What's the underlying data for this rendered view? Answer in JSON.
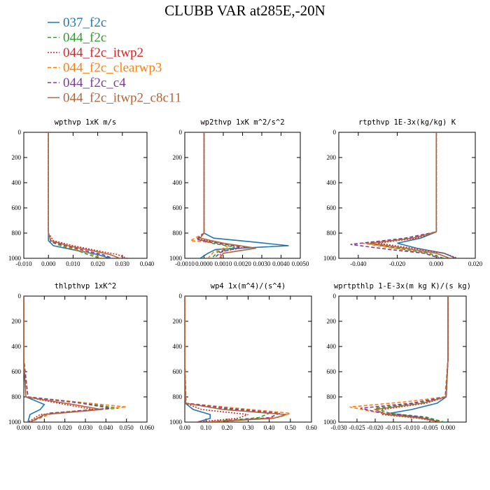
{
  "figure": {
    "title": "CLUBB VAR at285E,-20N"
  },
  "legend": [
    {
      "name": "037_f2c",
      "color": "#1f77b4",
      "dash": "solid"
    },
    {
      "name": "044_f2c",
      "color": "#2ca02c",
      "dash": "dashed"
    },
    {
      "name": "044_f2c_itwp2",
      "color": "#d62728",
      "dash": "dotted"
    },
    {
      "name": "044_f2c_clearwp3",
      "color": "#ff7f0e",
      "dash": "dashed"
    },
    {
      "name": "044_f2c_c4",
      "color": "#7d3c98",
      "dash": "dashed"
    },
    {
      "name": "044_f2c_itwp2_c8c11",
      "color": "#b5653a",
      "dash": "solid"
    }
  ],
  "chart_data": [
    {
      "type": "line",
      "title": "wpthvp  1xK m/s",
      "xlim": [
        -0.01,
        0.04
      ],
      "ylim": [
        1000,
        0
      ],
      "xticks": [
        "-0.010",
        "0.000",
        "0.010",
        "0.020",
        "0.030",
        "0.040"
      ],
      "xtick_values": [
        -0.01,
        0.0,
        0.01,
        0.02,
        0.03,
        0.04
      ],
      "yticks": [
        "0",
        "200",
        "400",
        "600",
        "800",
        "1000"
      ],
      "ytick_values": [
        0,
        200,
        400,
        600,
        800,
        1000
      ],
      "series": [
        {
          "name": "037_f2c",
          "x": [
            0,
            0,
            0,
            0,
            0.002,
            0.012,
            0.02,
            0.025
          ],
          "y": [
            0,
            500,
            800,
            860,
            900,
            940,
            970,
            1000
          ]
        },
        {
          "name": "044_f2c",
          "x": [
            0,
            0,
            0,
            0.001,
            0.005,
            0.012,
            0.016,
            0.021
          ],
          "y": [
            0,
            500,
            800,
            870,
            900,
            940,
            970,
            1000
          ]
        },
        {
          "name": "044_f2c_itwp2",
          "x": [
            0,
            0,
            0,
            0.002,
            0.01,
            0.02,
            0.028,
            0.032
          ],
          "y": [
            0,
            500,
            800,
            860,
            900,
            940,
            970,
            1000
          ]
        },
        {
          "name": "044_f2c_clearwp3",
          "x": [
            0,
            0,
            0,
            0.001,
            0.006,
            0.013,
            0.018,
            0.022
          ],
          "y": [
            0,
            500,
            800,
            870,
            900,
            940,
            970,
            1000
          ]
        },
        {
          "name": "044_f2c_c4",
          "x": [
            0,
            0,
            0,
            0.001,
            0.007,
            0.015,
            0.022,
            0.026
          ],
          "y": [
            0,
            500,
            800,
            870,
            900,
            940,
            970,
            1000
          ]
        },
        {
          "name": "044_f2c_itwp2_c8c11",
          "x": [
            0,
            0,
            0,
            0.001,
            0.008,
            0.018,
            0.025,
            0.029
          ],
          "y": [
            0,
            500,
            800,
            860,
            900,
            940,
            970,
            1000
          ]
        }
      ]
    },
    {
      "type": "line",
      "title": "wp2thvp  1xK m^2/s^2",
      "xlim": [
        -0.001,
        0.005
      ],
      "ylim": [
        1000,
        0
      ],
      "xticks": [
        "-0.0010",
        "0.0000",
        "0.0010",
        "0.0020",
        "0.0030",
        "0.0040",
        "0.0050"
      ],
      "xtick_values": [
        -0.001,
        0.0,
        0.001,
        0.002,
        0.003,
        0.004,
        0.005
      ],
      "yticks": [
        "0",
        "200",
        "400",
        "600",
        "800",
        "1000"
      ],
      "ytick_values": [
        0,
        200,
        400,
        600,
        800,
        1000
      ],
      "series": [
        {
          "name": "037_f2c",
          "x": [
            0,
            0,
            0,
            0.0005,
            0.0025,
            0.0044,
            0.0006,
            0.0002,
            -0.0002
          ],
          "y": [
            0,
            500,
            800,
            840,
            870,
            900,
            930,
            960,
            1000
          ]
        },
        {
          "name": "044_f2c",
          "x": [
            0,
            0,
            0,
            -0.0003,
            0.0004,
            0.0016,
            0.0007,
            0.0004
          ],
          "y": [
            0,
            500,
            800,
            850,
            880,
            910,
            950,
            1000
          ]
        },
        {
          "name": "044_f2c_itwp2",
          "x": [
            0,
            0,
            0,
            -0.0003,
            0.001,
            0.0022,
            0.0008,
            0.0009
          ],
          "y": [
            0,
            500,
            800,
            850,
            880,
            910,
            950,
            1000
          ]
        },
        {
          "name": "044_f2c_clearwp3",
          "x": [
            0,
            0,
            0,
            -0.0007,
            0.0008,
            0.0012,
            0.0005,
            0.0002
          ],
          "y": [
            0,
            500,
            800,
            860,
            880,
            910,
            950,
            1000
          ]
        },
        {
          "name": "044_f2c_c4",
          "x": [
            0,
            0,
            0,
            -0.0004,
            0.0007,
            0.0019,
            0.0009,
            0.0005
          ],
          "y": [
            0,
            500,
            800,
            850,
            880,
            910,
            950,
            1000
          ]
        },
        {
          "name": "044_f2c_itwp2_c8c11",
          "x": [
            0,
            0,
            0,
            -0.0002,
            0.001,
            0.0027,
            0.001,
            0.0008
          ],
          "y": [
            0,
            500,
            800,
            840,
            880,
            920,
            960,
            1000
          ]
        }
      ]
    },
    {
      "type": "line",
      "title": "rtpthvp  1E-3x(kg/kg) K",
      "xlim": [
        -0.05,
        0.02
      ],
      "ylim": [
        1000,
        0
      ],
      "xticks": [
        "-0.040",
        "-0.020",
        "0.000",
        "0.020"
      ],
      "xtick_values": [
        -0.04,
        -0.02,
        0.0,
        0.02
      ],
      "yticks": [
        "0",
        "200",
        "400",
        "600",
        "800",
        "1000"
      ],
      "ytick_values": [
        0,
        200,
        400,
        600,
        800,
        1000
      ],
      "series": [
        {
          "name": "037_f2c",
          "x": [
            0,
            0,
            0,
            -0.008,
            -0.02,
            -0.01,
            0.004,
            0.01
          ],
          "y": [
            0,
            500,
            790,
            840,
            880,
            920,
            960,
            1000
          ]
        },
        {
          "name": "044_f2c",
          "x": [
            0,
            0,
            0,
            -0.012,
            -0.036,
            -0.02,
            -0.004,
            0.004
          ],
          "y": [
            0,
            500,
            790,
            840,
            880,
            920,
            960,
            1000
          ]
        },
        {
          "name": "044_f2c_itwp2",
          "x": [
            0,
            0,
            0,
            -0.01,
            -0.03,
            -0.012,
            0.004,
            0.011
          ],
          "y": [
            0,
            500,
            790,
            840,
            880,
            920,
            960,
            1000
          ]
        },
        {
          "name": "044_f2c_clearwp3",
          "x": [
            0,
            0,
            0,
            -0.014,
            -0.038,
            -0.022,
            -0.006,
            0.002
          ],
          "y": [
            0,
            500,
            790,
            840,
            880,
            920,
            960,
            1000
          ]
        },
        {
          "name": "044_f2c_c4",
          "x": [
            0,
            0,
            0,
            -0.016,
            -0.044,
            -0.024,
            -0.006,
            0.002
          ],
          "y": [
            0,
            500,
            790,
            840,
            890,
            930,
            960,
            1000
          ]
        },
        {
          "name": "044_f2c_itwp2_c8c11",
          "x": [
            0,
            0,
            0,
            -0.012,
            -0.034,
            -0.016,
            0.0,
            0.007
          ],
          "y": [
            0,
            500,
            790,
            840,
            880,
            920,
            960,
            1000
          ]
        }
      ]
    },
    {
      "type": "line",
      "title": "thlpthvp  1xK^2",
      "xlim": [
        0.0,
        0.06
      ],
      "ylim": [
        1000,
        0
      ],
      "xticks": [
        "0.000",
        "0.010",
        "0.020",
        "0.030",
        "0.040",
        "0.050",
        "0.060"
      ],
      "xtick_values": [
        0.0,
        0.01,
        0.02,
        0.03,
        0.04,
        0.05,
        0.06
      ],
      "yticks": [
        "0",
        "200",
        "400",
        "600",
        "800",
        "1000"
      ],
      "ytick_values": [
        0,
        200,
        400,
        600,
        800,
        1000
      ],
      "series": [
        {
          "name": "037_f2c",
          "x": [
            0,
            0,
            0.001,
            0.01,
            0.008,
            0.003,
            0.002
          ],
          "y": [
            0,
            500,
            800,
            860,
            900,
            940,
            1000
          ]
        },
        {
          "name": "044_f2c",
          "x": [
            0,
            0,
            0.002,
            0.03,
            0.046,
            0.012,
            0.003
          ],
          "y": [
            0,
            500,
            800,
            850,
            890,
            930,
            1000
          ]
        },
        {
          "name": "044_f2c_itwp2",
          "x": [
            0,
            0,
            0.001,
            0.02,
            0.034,
            0.008,
            0.002
          ],
          "y": [
            0,
            500,
            800,
            860,
            900,
            940,
            1000
          ]
        },
        {
          "name": "044_f2c_clearwp3",
          "x": [
            0,
            0,
            0.002,
            0.032,
            0.05,
            0.014,
            0.003
          ],
          "y": [
            0,
            500,
            800,
            850,
            880,
            930,
            1000
          ]
        },
        {
          "name": "044_f2c_c4",
          "x": [
            0,
            0,
            0.002,
            0.028,
            0.042,
            0.012,
            0.003
          ],
          "y": [
            0,
            500,
            800,
            850,
            890,
            930,
            1000
          ]
        },
        {
          "name": "044_f2c_itwp2_c8c11",
          "x": [
            0,
            0,
            0.001,
            0.024,
            0.038,
            0.01,
            0.003
          ],
          "y": [
            0,
            500,
            800,
            860,
            900,
            940,
            1000
          ]
        }
      ]
    },
    {
      "type": "line",
      "title": "wp4  1x(m^4)/(s^4)",
      "xlim": [
        0.0,
        0.6
      ],
      "ylim": [
        1000,
        0
      ],
      "xticks": [
        "0.00",
        "0.10",
        "0.20",
        "0.30",
        "0.40",
        "0.50",
        "0.60"
      ],
      "xtick_values": [
        0.0,
        0.1,
        0.2,
        0.3,
        0.4,
        0.5,
        0.6
      ],
      "yticks": [
        "0",
        "200",
        "400",
        "600",
        "800",
        "1000"
      ],
      "ytick_values": [
        0,
        200,
        400,
        600,
        800,
        1000
      ],
      "series": [
        {
          "name": "037_f2c",
          "x": [
            0,
            0,
            0.002,
            0.04,
            0.12,
            0.12,
            0.06
          ],
          "y": [
            0,
            500,
            850,
            900,
            940,
            970,
            1000
          ]
        },
        {
          "name": "044_f2c",
          "x": [
            0,
            0,
            0.004,
            0.15,
            0.4,
            0.35,
            0.1
          ],
          "y": [
            0,
            500,
            850,
            890,
            930,
            965,
            1000
          ]
        },
        {
          "name": "044_f2c_itwp2",
          "x": [
            0,
            0,
            0.003,
            0.08,
            0.3,
            0.25,
            0.05
          ],
          "y": [
            0,
            500,
            850,
            900,
            940,
            970,
            1000
          ]
        },
        {
          "name": "044_f2c_clearwp3",
          "x": [
            0,
            0,
            0.006,
            0.25,
            0.5,
            0.45,
            0.15
          ],
          "y": [
            0,
            500,
            850,
            890,
            930,
            960,
            1000
          ]
        },
        {
          "name": "044_f2c_c4",
          "x": [
            0,
            0,
            0.005,
            0.2,
            0.45,
            0.4,
            0.12
          ],
          "y": [
            0,
            500,
            850,
            890,
            930,
            965,
            1000
          ]
        },
        {
          "name": "044_f2c_itwp2_c8c11",
          "x": [
            0,
            0,
            0.004,
            0.18,
            0.48,
            0.42,
            0.1
          ],
          "y": [
            0,
            500,
            850,
            900,
            940,
            970,
            1000
          ]
        }
      ]
    },
    {
      "type": "line",
      "title": "wprtpthlp  1-E-3x(m kg K)/(s kg)",
      "xlim": [
        -0.03,
        0.005
      ],
      "ylim": [
        1000,
        0
      ],
      "xticks": [
        "-0.030",
        "-0.025",
        "-0.020",
        "-0.015",
        "-0.010",
        "-0.005",
        "0.000"
      ],
      "xtick_values": [
        -0.03,
        -0.025,
        -0.02,
        -0.015,
        -0.01,
        -0.005,
        0.0
      ],
      "yticks": [
        "0",
        "200",
        "400",
        "600",
        "800",
        "1000"
      ],
      "ytick_values": [
        0,
        200,
        400,
        600,
        800,
        1000
      ],
      "series": [
        {
          "name": "037_f2c",
          "x": [
            0,
            0,
            -0.0005,
            -0.003,
            -0.01,
            -0.016,
            -0.008,
            -0.002
          ],
          "y": [
            0,
            500,
            800,
            850,
            900,
            930,
            960,
            1000
          ]
        },
        {
          "name": "044_f2c",
          "x": [
            0,
            0,
            -0.0005,
            -0.008,
            -0.02,
            -0.016,
            -0.006,
            -0.001
          ],
          "y": [
            0,
            500,
            800,
            850,
            890,
            930,
            960,
            1000
          ]
        },
        {
          "name": "044_f2c_itwp2",
          "x": [
            0,
            0,
            -0.0005,
            -0.006,
            -0.018,
            -0.018,
            -0.008,
            -0.002
          ],
          "y": [
            0,
            500,
            800,
            850,
            900,
            940,
            970,
            1000
          ]
        },
        {
          "name": "044_f2c_clearwp3",
          "x": [
            0,
            0,
            -0.0008,
            -0.012,
            -0.027,
            -0.02,
            -0.008,
            -0.002
          ],
          "y": [
            0,
            500,
            800,
            840,
            880,
            920,
            960,
            1000
          ]
        },
        {
          "name": "044_f2c_c4",
          "x": [
            0,
            0,
            -0.0007,
            -0.01,
            -0.024,
            -0.018,
            -0.007,
            -0.002
          ],
          "y": [
            0,
            500,
            800,
            850,
            890,
            930,
            960,
            1000
          ]
        },
        {
          "name": "044_f2c_itwp2_c8c11",
          "x": [
            0,
            0,
            -0.0006,
            -0.007,
            -0.02,
            -0.017,
            -0.007,
            -0.002
          ],
          "y": [
            0,
            500,
            800,
            850,
            900,
            940,
            970,
            1000
          ]
        }
      ]
    }
  ]
}
